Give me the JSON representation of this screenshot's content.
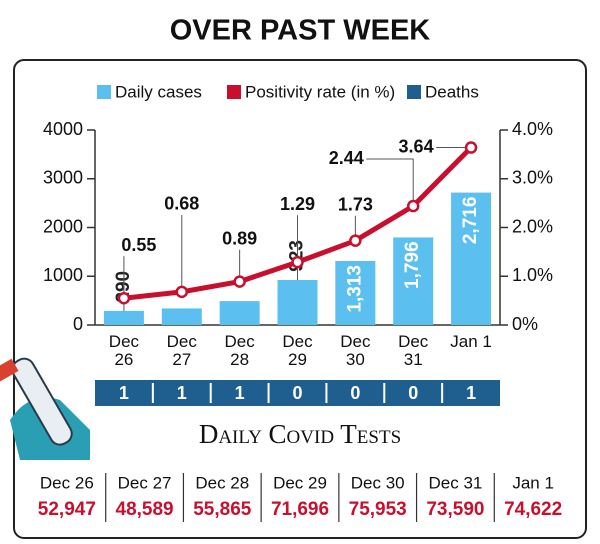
{
  "chart_data": {
    "type": "bar",
    "title": "OVER PAST WEEK",
    "categories": [
      "Dec 26",
      "Dec 27",
      "Dec 28",
      "Dec 29",
      "Dec 30",
      "Dec 31",
      "Jan 1"
    ],
    "series": [
      {
        "name": "Daily cases",
        "type": "bar",
        "color": "#5bc0ef",
        "values": [
          290,
          340,
          490,
          923,
          1313,
          1796,
          2716
        ],
        "value_labels": [
          "290",
          null,
          null,
          "923",
          "1,313",
          "1,796",
          "2,716"
        ]
      },
      {
        "name": "Positivity rate (in %)",
        "type": "line",
        "axis": "y2",
        "color": "#c8102e",
        "values": [
          0.55,
          0.68,
          0.89,
          1.29,
          1.73,
          2.44,
          3.64
        ]
      },
      {
        "name": "Deaths",
        "type": "row",
        "color": "#1f5f8f",
        "values": [
          1,
          1,
          1,
          0,
          0,
          0,
          1
        ]
      }
    ],
    "ylim": [
      0,
      4000
    ],
    "yticks": [
      0,
      1000,
      2000,
      3000,
      4000
    ],
    "y2lim": [
      0,
      4
    ],
    "y2ticks": [
      {
        "value": 0,
        "label": "0%"
      },
      {
        "value": 1,
        "label": "1.0%"
      },
      {
        "value": 2,
        "label": "2.0%"
      },
      {
        "value": 3,
        "label": "3.0%"
      },
      {
        "value": 4,
        "label": "4.0%"
      }
    ],
    "tests": {
      "title": "Daily Covid Tests",
      "values": [
        52947,
        48589,
        55865,
        71696,
        75953,
        73590,
        74622
      ],
      "value_labels": [
        "52,947",
        "48,589",
        "55,865",
        "71,696",
        "75,953",
        "73,590",
        "74,622"
      ]
    }
  }
}
